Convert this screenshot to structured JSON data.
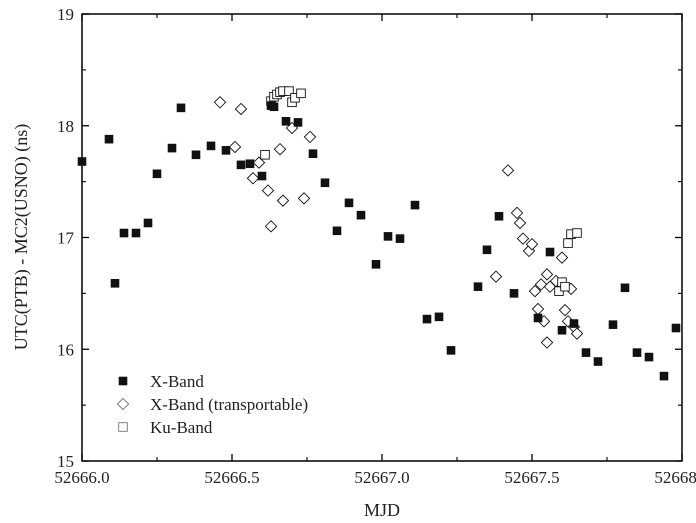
{
  "chart_data": {
    "type": "scatter",
    "title": "",
    "xlabel": "MJD",
    "ylabel": "UTC(PTB) - MC2(USNO) (ns)",
    "xlim": [
      52666.0,
      52668.0
    ],
    "ylim": [
      15,
      19
    ],
    "xticks": [
      "52666.0",
      "52666.5",
      "52667.0",
      "52667.5",
      "52668.0"
    ],
    "yticks": [
      "15",
      "16",
      "17",
      "18",
      "19"
    ],
    "grid": false,
    "legend_position": "bottom-left",
    "series": [
      {
        "name": "X-Band",
        "marker": "filled-square",
        "color": "#111111",
        "points": [
          [
            52666.0,
            17.68
          ],
          [
            52666.09,
            17.88
          ],
          [
            52666.11,
            16.59
          ],
          [
            52666.14,
            17.04
          ],
          [
            52666.18,
            17.04
          ],
          [
            52666.22,
            17.13
          ],
          [
            52666.25,
            17.57
          ],
          [
            52666.3,
            17.8
          ],
          [
            52666.33,
            18.16
          ],
          [
            52666.38,
            17.74
          ],
          [
            52666.43,
            17.82
          ],
          [
            52666.48,
            17.78
          ],
          [
            52666.53,
            17.65
          ],
          [
            52666.56,
            17.66
          ],
          [
            52666.6,
            17.55
          ],
          [
            52666.63,
            18.18
          ],
          [
            52666.64,
            18.17
          ],
          [
            52666.68,
            18.04
          ],
          [
            52666.72,
            18.03
          ],
          [
            52666.77,
            17.75
          ],
          [
            52666.81,
            17.49
          ],
          [
            52666.85,
            17.06
          ],
          [
            52666.89,
            17.31
          ],
          [
            52666.93,
            17.2
          ],
          [
            52666.98,
            16.76
          ],
          [
            52667.02,
            17.01
          ],
          [
            52667.06,
            16.99
          ],
          [
            52667.11,
            17.29
          ],
          [
            52667.15,
            16.27
          ],
          [
            52667.19,
            16.29
          ],
          [
            52667.23,
            15.99
          ],
          [
            52667.32,
            16.56
          ],
          [
            52667.35,
            16.89
          ],
          [
            52667.39,
            17.19
          ],
          [
            52667.44,
            16.5
          ],
          [
            52667.52,
            16.28
          ],
          [
            52667.56,
            16.87
          ],
          [
            52667.6,
            16.17
          ],
          [
            52667.64,
            16.23
          ],
          [
            52667.68,
            15.97
          ],
          [
            52667.72,
            15.89
          ],
          [
            52667.77,
            16.22
          ],
          [
            52667.81,
            16.55
          ],
          [
            52667.85,
            15.97
          ],
          [
            52667.89,
            15.93
          ],
          [
            52667.94,
            15.76
          ],
          [
            52667.98,
            16.19
          ]
        ]
      },
      {
        "name": "X-Band (transportable)",
        "marker": "open-diamond",
        "color": "#111111",
        "points": [
          [
            52666.46,
            18.21
          ],
          [
            52666.51,
            17.81
          ],
          [
            52666.53,
            18.15
          ],
          [
            52666.57,
            17.53
          ],
          [
            52666.59,
            17.67
          ],
          [
            52666.62,
            17.42
          ],
          [
            52666.63,
            17.1
          ],
          [
            52666.66,
            17.79
          ],
          [
            52666.67,
            17.33
          ],
          [
            52666.7,
            17.98
          ],
          [
            52666.74,
            17.35
          ],
          [
            52666.76,
            17.9
          ],
          [
            52667.38,
            16.65
          ],
          [
            52667.42,
            17.6
          ],
          [
            52667.45,
            17.22
          ],
          [
            52667.46,
            17.13
          ],
          [
            52667.47,
            16.99
          ],
          [
            52667.49,
            16.88
          ],
          [
            52667.5,
            16.94
          ],
          [
            52667.51,
            16.52
          ],
          [
            52667.52,
            16.36
          ],
          [
            52667.53,
            16.58
          ],
          [
            52667.54,
            16.25
          ],
          [
            52667.55,
            16.06
          ],
          [
            52667.55,
            16.67
          ],
          [
            52667.56,
            16.56
          ],
          [
            52667.58,
            16.61
          ],
          [
            52667.6,
            16.82
          ],
          [
            52667.61,
            16.35
          ],
          [
            52667.62,
            16.25
          ],
          [
            52667.63,
            16.54
          ],
          [
            52667.64,
            16.2
          ],
          [
            52667.65,
            16.14
          ]
        ]
      },
      {
        "name": "Ku-Band",
        "marker": "open-square",
        "color": "#111111",
        "points": [
          [
            52666.61,
            17.74
          ],
          [
            52666.63,
            18.22
          ],
          [
            52666.64,
            18.26
          ],
          [
            52666.65,
            18.28
          ],
          [
            52666.66,
            18.3
          ],
          [
            52666.67,
            18.31
          ],
          [
            52666.69,
            18.31
          ],
          [
            52666.7,
            18.21
          ],
          [
            52666.71,
            18.25
          ],
          [
            52666.73,
            18.29
          ],
          [
            52667.59,
            16.52
          ],
          [
            52667.6,
            16.6
          ],
          [
            52667.61,
            16.56
          ],
          [
            52667.62,
            16.95
          ],
          [
            52667.63,
            17.03
          ],
          [
            52667.65,
            17.04
          ]
        ]
      }
    ]
  }
}
